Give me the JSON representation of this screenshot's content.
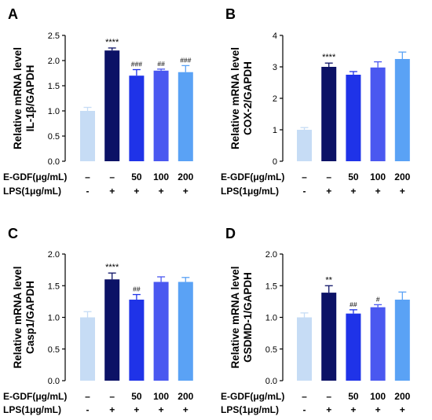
{
  "figure": {
    "bar_colors": [
      "#c6dcf5",
      "#0c1266",
      "#1f33e8",
      "#4a58f0",
      "#5aa2f5"
    ]
  },
  "chart_data": [
    {
      "panel": "A",
      "type": "bar",
      "ylabel_line1": "Relative mRNA level",
      "ylabel_line2": "IL-1β/GAPDH",
      "ylim": [
        0,
        2.5
      ],
      "yticks": [
        "0.0",
        "0.5",
        "1.0",
        "1.5",
        "2.0",
        "2.5"
      ],
      "values": [
        1.0,
        2.2,
        1.7,
        1.8,
        1.77
      ],
      "errors": [
        0.07,
        0.05,
        0.12,
        0.03,
        0.13
      ],
      "significance": [
        "",
        "****",
        "###",
        "##",
        "###"
      ],
      "table": {
        "row1": {
          "label": "E-GDF(μg/mL)",
          "cells": [
            "–",
            "–",
            "50",
            "100",
            "200"
          ]
        },
        "row2": {
          "label": "LPS(1μg/mL)",
          "cells": [
            "-",
            "+",
            "+",
            "+",
            "+"
          ]
        }
      }
    },
    {
      "panel": "B",
      "type": "bar",
      "ylabel_line1": "Relative mRNA level",
      "ylabel_line2": "COX-2/GAPDH",
      "ylim": [
        0,
        4
      ],
      "yticks": [
        "0",
        "1",
        "2",
        "3",
        "4"
      ],
      "values": [
        1.0,
        3.0,
        2.75,
        2.98,
        3.25
      ],
      "errors": [
        0.07,
        0.12,
        0.1,
        0.18,
        0.22
      ],
      "significance": [
        "",
        "****",
        "",
        "",
        ""
      ],
      "table": {
        "row1": {
          "label": "E-GDF(μg/mL)",
          "cells": [
            "–",
            "–",
            "50",
            "100",
            "200"
          ]
        },
        "row2": {
          "label": "LPS(1μg/mL)",
          "cells": [
            "-",
            "+",
            "+",
            "+",
            "+"
          ]
        }
      }
    },
    {
      "panel": "C",
      "type": "bar",
      "ylabel_line1": "Relative mRNA level",
      "ylabel_line2": "Casp1/GAPDH",
      "ylim": [
        0,
        2.0
      ],
      "yticks": [
        "0.0",
        "0.5",
        "1.0",
        "1.5",
        "2.0"
      ],
      "values": [
        1.0,
        1.6,
        1.28,
        1.56,
        1.56
      ],
      "errors": [
        0.09,
        0.1,
        0.08,
        0.08,
        0.07
      ],
      "significance": [
        "",
        "****",
        "##",
        "",
        ""
      ],
      "table": {
        "row1": {
          "label": "E-GDF(μg/mL)",
          "cells": [
            "–",
            "–",
            "50",
            "100",
            "200"
          ]
        },
        "row2": {
          "label": "LPS(1μg/mL)",
          "cells": [
            "-",
            "+",
            "+",
            "+",
            "+"
          ]
        }
      }
    },
    {
      "panel": "D",
      "type": "bar",
      "ylabel_line1": "Relative mRNA level",
      "ylabel_line2": "GSDMD-1/GAPDH",
      "ylim": [
        0,
        2.0
      ],
      "yticks": [
        "0.0",
        "0.5",
        "1.0",
        "1.5",
        "2.0"
      ],
      "values": [
        1.0,
        1.39,
        1.06,
        1.16,
        1.28
      ],
      "errors": [
        0.07,
        0.11,
        0.06,
        0.04,
        0.12
      ],
      "significance": [
        "",
        "**",
        "##",
        "#",
        ""
      ],
      "table": {
        "row1": {
          "label": "E-GDF(μg/mL)",
          "cells": [
            "–",
            "–",
            "50",
            "100",
            "200"
          ]
        },
        "row2": {
          "label": "LPS(1μg/mL)",
          "cells": [
            "-",
            "+",
            "+",
            "+",
            "+"
          ]
        }
      }
    }
  ]
}
